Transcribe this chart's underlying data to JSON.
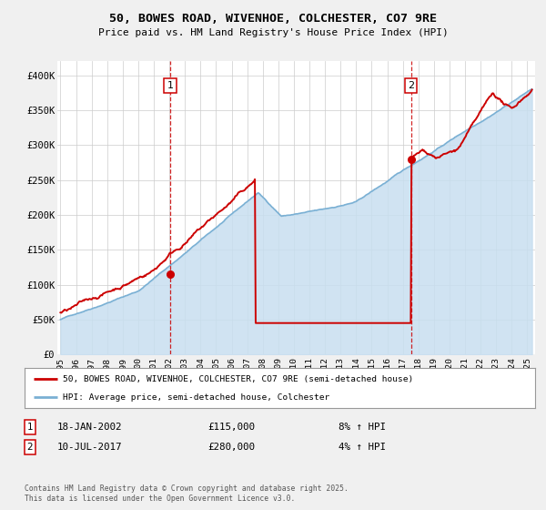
{
  "title": "50, BOWES ROAD, WIVENHOE, COLCHESTER, CO7 9RE",
  "subtitle": "Price paid vs. HM Land Registry's House Price Index (HPI)",
  "background_color": "#f0f0f0",
  "plot_bg_color": "#ffffff",
  "line1_color": "#cc0000",
  "line2_color": "#7ab0d4",
  "vline_color": "#cc0000",
  "marker1_date": 2002.05,
  "marker1_value": 115000,
  "marker2_date": 2017.53,
  "marker2_value": 280000,
  "xlim": [
    1994.8,
    2025.5
  ],
  "ylim": [
    0,
    420000
  ],
  "yticks": [
    0,
    50000,
    100000,
    150000,
    200000,
    250000,
    300000,
    350000,
    400000
  ],
  "ytick_labels": [
    "£0",
    "£50K",
    "£100K",
    "£150K",
    "£200K",
    "£250K",
    "£300K",
    "£350K",
    "£400K"
  ],
  "xticks": [
    1995,
    1996,
    1997,
    1998,
    1999,
    2000,
    2001,
    2002,
    2003,
    2004,
    2005,
    2006,
    2007,
    2008,
    2009,
    2010,
    2011,
    2012,
    2013,
    2014,
    2015,
    2016,
    2017,
    2018,
    2019,
    2020,
    2021,
    2022,
    2023,
    2024,
    2025
  ],
  "legend_label1": "50, BOWES ROAD, WIVENHOE, COLCHESTER, CO7 9RE (semi-detached house)",
  "legend_label2": "HPI: Average price, semi-detached house, Colchester",
  "annotation1_date": "18-JAN-2002",
  "annotation1_price": "£115,000",
  "annotation1_hpi": "8% ↑ HPI",
  "annotation2_date": "10-JUL-2017",
  "annotation2_price": "£280,000",
  "annotation2_hpi": "4% ↑ HPI",
  "footer": "Contains HM Land Registry data © Crown copyright and database right 2025.\nThis data is licensed under the Open Government Licence v3.0.",
  "hpi_shade_color": "#c8dff0"
}
